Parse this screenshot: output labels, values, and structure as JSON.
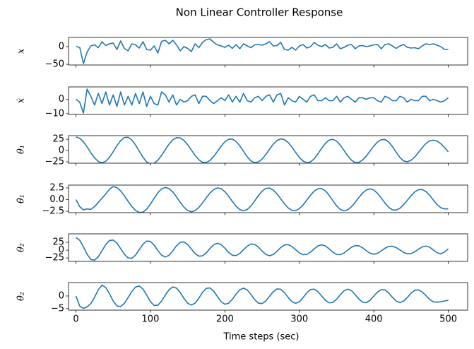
{
  "chart_data": {
    "type": "line",
    "title": "Non Linear Controller Response",
    "xlabel": "Time steps (sec)",
    "xlim": [
      -10,
      526
    ],
    "xticks": [
      0,
      100,
      200,
      300,
      400,
      500
    ],
    "x": [
      0,
      5,
      10,
      15,
      20,
      25,
      30,
      35,
      40,
      45,
      50,
      55,
      60,
      65,
      70,
      75,
      80,
      85,
      90,
      95,
      100,
      105,
      110,
      115,
      120,
      125,
      130,
      135,
      140,
      145,
      150,
      155,
      160,
      165,
      170,
      175,
      180,
      185,
      190,
      195,
      200,
      205,
      210,
      215,
      220,
      225,
      230,
      235,
      240,
      245,
      250,
      255,
      260,
      265,
      270,
      275,
      280,
      285,
      290,
      295,
      300,
      305,
      310,
      315,
      320,
      325,
      330,
      335,
      340,
      345,
      350,
      355,
      360,
      365,
      370,
      375,
      380,
      385,
      390,
      395,
      400,
      405,
      410,
      415,
      420,
      425,
      430,
      435,
      440,
      445,
      450,
      455,
      460,
      465,
      470,
      475,
      480,
      485,
      490,
      495,
      500
    ],
    "panels": [
      {
        "ylabel": "x",
        "color": "#1f77b4",
        "ylim": [
          -52,
          26
        ],
        "yticks": [
          {
            "value": -50,
            "label": "−50"
          },
          0
        ],
        "values": [
          0,
          -2,
          -48,
          -15,
          2,
          5,
          -3,
          14,
          3,
          8,
          10,
          -8,
          16,
          -5,
          -12,
          8,
          5,
          -4,
          14,
          -8,
          -10,
          2,
          -18,
          15,
          18,
          8,
          18,
          5,
          -12,
          0,
          -5,
          -14,
          8,
          -3,
          12,
          20,
          22,
          12,
          5,
          2,
          -2,
          4,
          -5,
          6,
          -6,
          8,
          2,
          -3,
          5,
          6,
          4,
          8,
          14,
          2,
          3,
          12,
          -8,
          -10,
          -2,
          -10,
          2,
          6,
          -4,
          0,
          12,
          4,
          0,
          6,
          -4,
          -2,
          8,
          -6,
          -2,
          4,
          6,
          -6,
          2,
          3,
          0,
          2,
          5,
          6,
          -6,
          6,
          8,
          2,
          -5,
          2,
          6,
          -2,
          -4,
          -3,
          -6,
          2,
          8,
          6,
          8,
          4,
          0,
          -8,
          -8
        ]
      },
      {
        "ylabel": "ẋ",
        "color": "#1f77b4",
        "ylim": [
          -10.5,
          8.5
        ],
        "yticks": [
          {
            "value": -10,
            "label": "−10"
          },
          0
        ],
        "values": [
          0,
          -2,
          -9.5,
          7,
          2,
          -4,
          4,
          -3,
          5,
          -4,
          3,
          -5,
          5,
          -4,
          2,
          -4,
          4,
          -3,
          5,
          -5,
          2,
          -3,
          -4,
          5,
          3,
          -2,
          3,
          -4,
          0,
          -2,
          -1,
          2,
          3,
          -3,
          2,
          2,
          -1,
          -3,
          -1,
          1,
          -1,
          3,
          -2,
          2,
          -2,
          4,
          -1,
          -2,
          1,
          2,
          -1,
          2,
          3,
          -2,
          3,
          4,
          -4,
          1,
          -1,
          -2,
          2,
          0,
          -2,
          2,
          3,
          -1,
          -1,
          1,
          -1,
          -1,
          2,
          -2,
          1,
          2,
          0,
          -2,
          1,
          1,
          0,
          1,
          1,
          -1,
          -2,
          2,
          1,
          -1,
          -1,
          2,
          1,
          -2,
          0,
          -1,
          -1,
          2,
          2,
          -1,
          0,
          -1,
          -2,
          -1,
          1
        ]
      },
      {
        "ylabel": "θ₁",
        "color": "#1f77b4",
        "ylim": [
          -28,
          33
        ],
        "yticks": [
          {
            "value": -25,
            "label": "−25"
          },
          0,
          25
        ],
        "values": [
          30,
          27.2,
          19.3,
          7.9,
          -4.9,
          -16.3,
          -24.2,
          -27,
          -23.8,
          -15.0,
          -2.5,
          10.8,
          22.1,
          28.8,
          29.5,
          23.6,
          12.4,
          -1.4,
          -15,
          -25.2,
          -29.9,
          -28.2,
          -21.4,
          -10.6,
          2.1,
          14.3,
          23.7,
          28.6,
          28.0,
          22.4,
          12.8,
          1,
          -10.8,
          -20.4,
          -26.0,
          -26.6,
          -21.9,
          -13.1,
          -1.7,
          9.9,
          19.5,
          25.0,
          25.5,
          20.3,
          10.5,
          -1.7,
          -13.8,
          -22.8,
          -26.9,
          -25.3,
          -18.8,
          -8.7,
          3.1,
          14.1,
          22.3,
          25.9,
          24.3,
          17.8,
          7.7,
          -4.1,
          -15.1,
          -23.3,
          -26.9,
          -25.1,
          -18.0,
          -7.1,
          5.1,
          16.0,
          23.2,
          24.9,
          20.9,
          12,
          0.2,
          -11.8,
          -21.4,
          -26.5,
          -26.1,
          -20.9,
          -12.0,
          -1,
          10.0,
          18.9,
          24.1,
          24.5,
          19.0,
          8.7,
          -3.8,
          -15.3,
          -23.0,
          -24.9,
          -21.6,
          -14.2,
          -4.2,
          6.4,
          15.6,
          21.6,
          23,
          21,
          15,
          7,
          -3
        ]
      },
      {
        "ylabel": "θ̇₁",
        "color": "#1f77b4",
        "ylim": [
          -2.8,
          3.1
        ],
        "yticks": [
          {
            "value": -2.5,
            "label": "−2.5"
          },
          {
            "value": 0,
            "label": "0.0"
          },
          2.5
        ],
        "values": [
          0,
          -1.5,
          -2.2,
          -2.0,
          -2.1,
          -1.5,
          -0.6,
          0.3,
          1.2,
          2.2,
          2.8,
          2.55,
          1.85,
          0.82,
          -0.36,
          -1.47,
          -2.32,
          -2.76,
          -2.69,
          -2.05,
          -0.98,
          0.28,
          1.47,
          2.29,
          2.6,
          2.34,
          1.62,
          0.58,
          -0.58,
          -1.62,
          -2.34,
          -2.6,
          -2.36,
          -1.69,
          -0.71,
          0.39,
          1.41,
          2.16,
          2.49,
          2.33,
          1.7,
          0.72,
          -0.4,
          -1.42,
          -2.14,
          -2.4,
          -2.13,
          -1.37,
          -0.3,
          0.85,
          1.82,
          2.4,
          2.46,
          2.03,
          1.21,
          0.16,
          -0.91,
          -1.79,
          -2.31,
          -2.36,
          -1.94,
          -1.14,
          -0.11,
          0.94,
          1.81,
          2.31,
          2.35,
          1.86,
          0.92,
          -0.24,
          -1.33,
          -2.12,
          -2.4,
          -2.17,
          -1.51,
          -0.57,
          0.47,
          1.41,
          2.07,
          2.3,
          2.04,
          1.33,
          0.33,
          -0.75,
          -1.67,
          -2.21,
          -2.26,
          -1.87,
          -1.12,
          -0.15,
          0.83,
          1.64,
          2.12,
          2.16,
          1.72,
          0.9,
          -0.11,
          -1.07,
          -1.75,
          -2.0,
          -2.0
        ]
      },
      {
        "ylabel": "θ₂",
        "color": "#1f77b4",
        "ylim": [
          -36,
          52
        ],
        "yticks": [
          {
            "value": -25,
            "label": "−25"
          },
          0,
          25
        ],
        "values": [
          40,
          31.8,
          10.9,
          -13.3,
          -30.0,
          -32.0,
          -21.0,
          -2.1,
          17.7,
          30.7,
          32.1,
          22.1,
          4.9,
          -13.1,
          -24.9,
          -26.0,
          -15.9,
          1.5,
          18.9,
          29.0,
          27.8,
          16.0,
          -1.3,
          -16.2,
          -22,
          -16.5,
          -2.5,
          13.8,
          25.0,
          26.2,
          17.8,
          3.5,
          -10.8,
          -19.2,
          -18.3,
          -8.7,
          5.3,
          17.3,
          22,
          17.5,
          6.1,
          -7.2,
          -16.3,
          -17.4,
          -10.6,
          1,
          12.6,
          19.4,
          18.4,
          9.7,
          -2.9,
          -13.7,
          -18,
          -14.0,
          -3.7,
          8.3,
          16.5,
          17.4,
          11.5,
          1.5,
          -8.5,
          -14.4,
          -13.7,
          -6.4,
          4.3,
          13.4,
          17,
          13.4,
          4.2,
          -6.4,
          -13.7,
          -14.5,
          -9.1,
          0,
          9.1,
          14.5,
          13.8,
          7.4,
          -1.9,
          -9.9,
          -13,
          -10.1,
          -2.6,
          6.0,
          11.9,
          12.6,
          8.1,
          0.5,
          -7.1,
          -11.6,
          -11.0,
          -5.3,
          3.1,
          10.2,
          13,
          9.3,
          0.5,
          -8.3,
          -12,
          -6,
          4
        ]
      },
      {
        "ylabel": "θ̇₂",
        "color": "#1f77b4",
        "ylim": [
          -5.6,
          5.3
        ],
        "yticks": [
          {
            "value": -5,
            "label": "−5"
          },
          0
        ],
        "values": [
          0,
          -4.0,
          -4.9,
          -4.3,
          -3.0,
          -0.5,
          2.5,
          4.3,
          3.34,
          0.87,
          -1.98,
          -3.94,
          -4.18,
          -2.9,
          -0.65,
          1.78,
          3.53,
          3.96,
          2.74,
          0.33,
          -2.23,
          -3.76,
          -3.62,
          -2.03,
          0.34,
          2.5,
          3.57,
          3.12,
          1.38,
          -0.93,
          -2.86,
          -3.6,
          -2.83,
          -0.85,
          1.44,
          3.02,
          3.18,
          1.91,
          -0.22,
          -2.25,
          -3.27,
          -2.87,
          -1.32,
          0.73,
          2.44,
          3.1,
          2.41,
          0.63,
          -1.43,
          -2.85,
          -3.0,
          -1.93,
          -0.1,
          1.73,
          2.8,
          2.66,
          1.33,
          -0.59,
          -2.25,
          -2.9,
          -2.26,
          -0.63,
          1.26,
          2.57,
          2.7,
          1.71,
          0,
          -1.71,
          -2.7,
          -2.57,
          -1.32,
          0.51,
          2.08,
          2.7,
          2.1,
          0.55,
          -1.24,
          -2.48,
          -2.61,
          -1.67,
          -0.05,
          1.57,
          2.51,
          2.39,
          1.2,
          -0.53,
          -2.02,
          -2.6,
          -2.03,
          -0.57,
          1.12,
          2.29,
          2.42,
          1.59,
          0.16,
          -1.34,
          -2.33,
          -2.4,
          -2.3,
          -2.0,
          -1.7
        ]
      }
    ]
  }
}
